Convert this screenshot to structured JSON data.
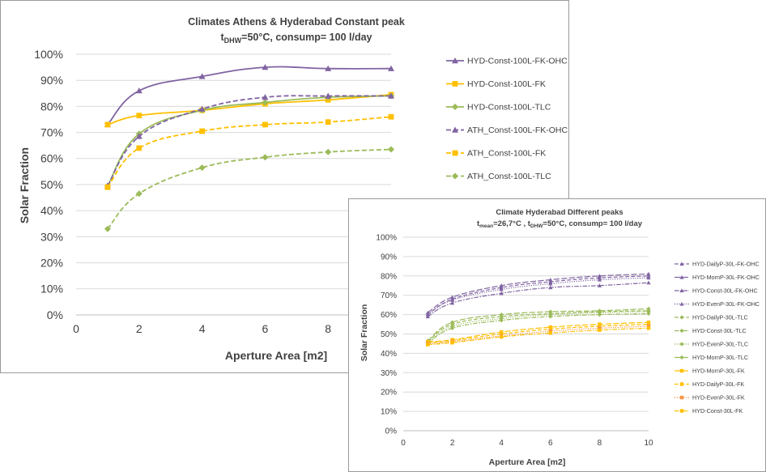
{
  "charts": [
    {
      "id": "chart1",
      "title_line1": "Climates Athens & Hyderabad Constant peak",
      "title_line2_pre": "t",
      "title_line2_sub": "DHW",
      "title_line2_post": "=50°C, consump= 100 l/day",
      "xlabel": "Aperture Area [m2]",
      "ylabel": "Solar Fraction"
    },
    {
      "id": "chart2",
      "title_line1": "Climate Hyderabad Different peaks",
      "title_line2_pre": "t",
      "title_line2_sub": "mean",
      "title_line2_mid": "=26,7°C ,  t",
      "title_line2_sub2": "DHW",
      "title_line2_post": "=50°C, consump= 100 l/day",
      "xlabel": "Aperture Area [m2]",
      "ylabel": "Solar Fraction"
    }
  ],
  "colors": {
    "purple": "#8064a2",
    "orange": "#ffc000",
    "green": "#9bbb59",
    "grid": "#d9d9d9",
    "text": "#404040"
  },
  "chart_data": [
    {
      "type": "line",
      "title": "Climates Athens & Hyderabad Constant peak",
      "xlabel": "Aperture Area [m2]",
      "ylabel": "Solar Fraction",
      "xlim": [
        0,
        10
      ],
      "ylim": [
        0,
        1
      ],
      "xticks": [
        0,
        2,
        4,
        6,
        8
      ],
      "yticks": [
        0,
        0.1,
        0.2,
        0.3,
        0.4,
        0.5,
        0.6,
        0.7,
        0.8,
        0.9,
        1.0
      ],
      "ytick_labels": [
        "0%",
        "10%",
        "20%",
        "30%",
        "40%",
        "50%",
        "60%",
        "70%",
        "80%",
        "90%",
        "100%"
      ],
      "grid": "horizontal",
      "legend": "right",
      "x": [
        1,
        2,
        4,
        6,
        8,
        10
      ],
      "series": [
        {
          "name": "HYD-Const-100L-FK-OHC",
          "values": [
            0.73,
            0.86,
            0.915,
            0.95,
            0.945,
            0.945
          ],
          "color": "#8064a2",
          "dash": "solid",
          "marker": "triangle"
        },
        {
          "name": "HYD-Const-100L-FK",
          "values": [
            0.73,
            0.765,
            0.785,
            0.81,
            0.825,
            0.845
          ],
          "color": "#ffc000",
          "dash": "solid",
          "marker": "square"
        },
        {
          "name": "HYD-Const-100L-TLC",
          "values": [
            0.495,
            0.695,
            0.785,
            0.815,
            0.835,
            0.84
          ],
          "color": "#9bbb59",
          "dash": "solid",
          "marker": "diamond"
        },
        {
          "name": "ATH_Const-100L-FK-OHC",
          "values": [
            0.495,
            0.685,
            0.79,
            0.835,
            0.84,
            0.84
          ],
          "color": "#8064a2",
          "dash": "dashed",
          "marker": "triangle"
        },
        {
          "name": "ATH_Const-100L-FK",
          "values": [
            0.49,
            0.64,
            0.705,
            0.73,
            0.74,
            0.76
          ],
          "color": "#ffc000",
          "dash": "dashed",
          "marker": "square"
        },
        {
          "name": "ATH_Const-100L-TLC",
          "values": [
            0.33,
            0.465,
            0.565,
            0.605,
            0.625,
            0.635
          ],
          "color": "#9bbb59",
          "dash": "dashed",
          "marker": "diamond"
        }
      ]
    },
    {
      "type": "line",
      "title": "Climate Hyderabad Different peaks",
      "xlabel": "Aperture Area [m2]",
      "ylabel": "Solar Fraction",
      "xlim": [
        0,
        10
      ],
      "ylim": [
        0,
        1
      ],
      "xticks": [
        0,
        2,
        4,
        6,
        8,
        10
      ],
      "yticks": [
        0,
        0.1,
        0.2,
        0.3,
        0.4,
        0.5,
        0.6,
        0.7,
        0.8,
        0.9,
        1.0
      ],
      "ytick_labels": [
        "0%",
        "10%",
        "20%",
        "30%",
        "40%",
        "50%",
        "60%",
        "70%",
        "80%",
        "90%",
        "100%"
      ],
      "grid": "horizontal",
      "legend": "right",
      "x": [
        1,
        2,
        4,
        6,
        8,
        10
      ],
      "series": [
        {
          "name": "HYD-DailyP-30L-FK-OHC",
          "values": [
            0.6,
            0.68,
            0.74,
            0.77,
            0.79,
            0.8
          ],
          "color": "#8064a2",
          "dash": "dashed",
          "marker": "triangle"
        },
        {
          "name": "HYD-MornP-30L-FK-OHC",
          "values": [
            0.61,
            0.69,
            0.75,
            0.78,
            0.8,
            0.81
          ],
          "color": "#8064a2",
          "dash": "longdash",
          "marker": "triangle"
        },
        {
          "name": "HYD-Const-30L-FK-OHC",
          "values": [
            0.59,
            0.66,
            0.71,
            0.74,
            0.75,
            0.765
          ],
          "color": "#8064a2",
          "dash": "dashdot",
          "marker": "triangle"
        },
        {
          "name": "HYD-EvenP-30L-FK-OHC",
          "values": [
            0.6,
            0.675,
            0.73,
            0.76,
            0.78,
            0.79
          ],
          "color": "#8064a2",
          "dash": "dotted",
          "marker": "triangle"
        },
        {
          "name": "HYD-DailyP-30L-TLC",
          "values": [
            0.46,
            0.55,
            0.59,
            0.605,
            0.615,
            0.62
          ],
          "color": "#9bbb59",
          "dash": "dashed",
          "marker": "diamond"
        },
        {
          "name": "HYD-Const-30L-TLC",
          "values": [
            0.45,
            0.53,
            0.57,
            0.59,
            0.6,
            0.605
          ],
          "color": "#9bbb59",
          "dash": "dashdot",
          "marker": "diamond"
        },
        {
          "name": "HYD-EvenP-30L-TLC",
          "values": [
            0.455,
            0.54,
            0.58,
            0.6,
            0.61,
            0.615
          ],
          "color": "#9bbb59",
          "dash": "dotted",
          "marker": "diamond"
        },
        {
          "name": "HYD-MornP-30L-TLC",
          "values": [
            0.465,
            0.56,
            0.6,
            0.615,
            0.62,
            0.63
          ],
          "color": "#9bbb59",
          "dash": "longdash",
          "marker": "diamond"
        },
        {
          "name": "HYD-MornP-30L-FK",
          "values": [
            0.46,
            0.47,
            0.51,
            0.535,
            0.55,
            0.56
          ],
          "color": "#ffc000",
          "dash": "longdash",
          "marker": "square"
        },
        {
          "name": "HYD-DailyP-30L-FK",
          "values": [
            0.455,
            0.465,
            0.5,
            0.525,
            0.54,
            0.55
          ],
          "color": "#ffc000",
          "dash": "dashed",
          "marker": "square"
        },
        {
          "name": "HYD-EvenP-30L-FK",
          "values": [
            0.45,
            0.46,
            0.49,
            0.515,
            0.53,
            0.54
          ],
          "color": "#f79646",
          "dash": "dotted",
          "marker": "square"
        },
        {
          "name": "HYD-Const-30L-FK",
          "values": [
            0.445,
            0.455,
            0.485,
            0.505,
            0.52,
            0.53
          ],
          "color": "#ffc000",
          "dash": "dashdot",
          "marker": "square"
        }
      ]
    }
  ]
}
